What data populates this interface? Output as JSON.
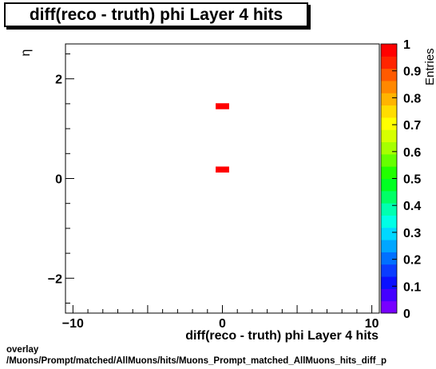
{
  "chart_data": {
    "type": "heatmap",
    "title": "diff(reco - truth) phi Layer 4 hits",
    "xlabel": "diff(reco - truth) phi Layer 4 hits",
    "ylabel": "η",
    "zlabel": "Entries",
    "xlim": [
      -10.5,
      10.5
    ],
    "ylim": [
      -2.7,
      2.7
    ],
    "zlim": [
      0,
      1
    ],
    "x_ticks": [
      -10,
      0,
      10
    ],
    "y_ticks": [
      -2,
      0,
      2
    ],
    "z_ticks": [
      "0",
      "0.1",
      "0.2",
      "0.3",
      "0.4",
      "0.5",
      "0.6",
      "0.7",
      "0.8",
      "0.9",
      "1"
    ],
    "cells": [
      {
        "x": 0,
        "y": 1.45,
        "value": 1
      },
      {
        "x": 0,
        "y": 0.18,
        "value": 1
      }
    ],
    "grid": false
  },
  "footer": {
    "line1": "overlay",
    "line2": "/Muons/Prompt/matched/AllMuons/hits/Muons_Prompt_matched_AllMuons_hits_diff_p"
  }
}
